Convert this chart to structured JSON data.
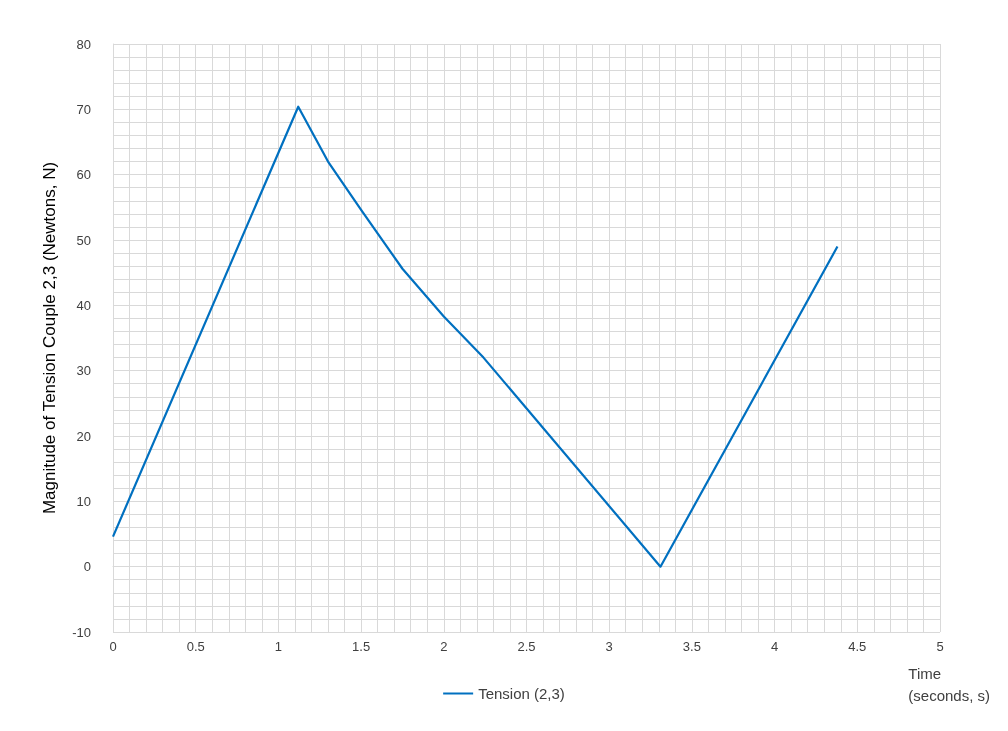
{
  "chart_data": {
    "type": "line",
    "xlabel": "Time\n(seconds, s)",
    "ylabel": "Magnitude of Tension Couple 2,3 (Newtons, N)",
    "x": [
      0,
      1.12,
      1.3,
      1.5,
      1.75,
      2,
      2.24,
      3.31,
      4.38
    ],
    "series": [
      {
        "name": "Tension (2,3)",
        "color": "#0070c0",
        "values": [
          4.6,
          70.4,
          62,
          54.6,
          45.6,
          38.3,
          32,
          0,
          49
        ]
      }
    ],
    "xlim": [
      0,
      5
    ],
    "xticks": [
      0,
      0.5,
      1,
      1.5,
      2,
      2.5,
      3,
      3.5,
      4,
      4.5,
      5
    ],
    "ylim": [
      -10,
      80
    ],
    "yticks": [
      -10,
      0,
      10,
      20,
      30,
      40,
      50,
      60,
      70,
      80
    ],
    "grid": true,
    "legend": "bottom",
    "marker": "none",
    "line_style": "solid"
  }
}
